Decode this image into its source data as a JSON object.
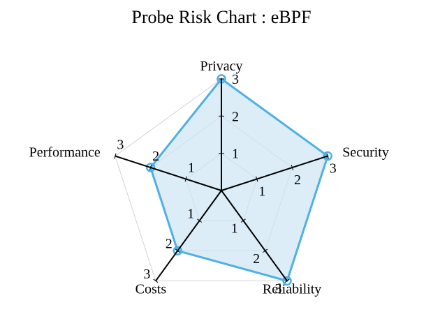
{
  "chart_data": {
    "type": "radar",
    "title": "Probe Risk Chart : eBPF",
    "axes": [
      "Privacy",
      "Security",
      "Reliability",
      "Costs",
      "Performance"
    ],
    "tick_values": [
      1,
      2,
      3
    ],
    "range": [
      0,
      3
    ],
    "grid": true,
    "series": [
      {
        "values": [
          3,
          3,
          3,
          2,
          2
        ],
        "color": "#4eb0e3",
        "fill": "#cde6f5"
      }
    ]
  }
}
